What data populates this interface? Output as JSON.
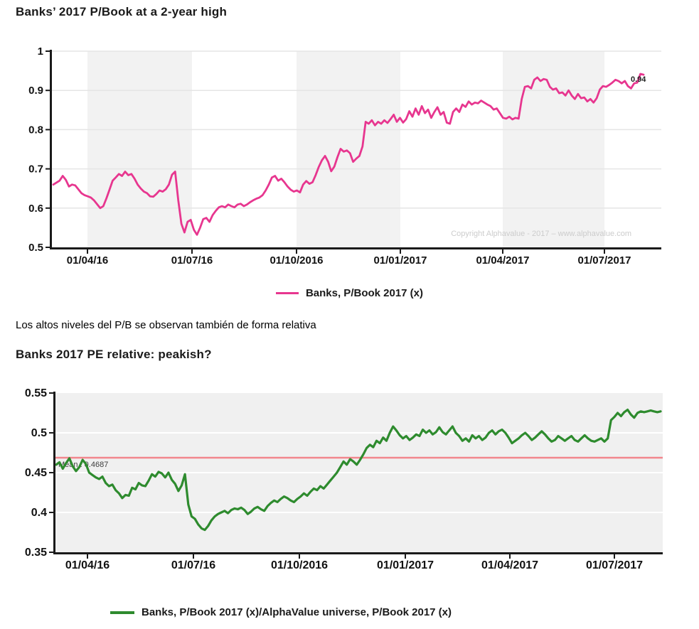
{
  "page": {
    "heading1": "Banks’ 2017 P/Book at a 2-year high",
    "paragraph": "Los altos niveles del P/B se observan también de forma relativa",
    "heading2": "Banks 2017 PE relative: peakish?"
  },
  "chart_data": [
    {
      "type": "line",
      "title": "Banks’ 2017 P/Book at a 2-year high",
      "legend": "Banks, P/Book 2017 (x)",
      "legend_position": "bottom",
      "line_color": "#e7368f",
      "ylim": [
        0.5,
        1.0
      ],
      "y_tick_values": [
        1,
        0.9,
        0.8,
        0.7,
        0.6,
        0.5
      ],
      "y_tick_labels": [
        "1",
        "0.9",
        "0.8",
        "0.7",
        "0.6",
        "0.5"
      ],
      "x_tick_labels": [
        "01/04/16",
        "01/07/16",
        "01/10/2016",
        "01/01/2017",
        "01/04/2017",
        "01/07/2017"
      ],
      "end_label": "0.94",
      "watermark": "Copyright Alphavalue - 2017 – www.alphavalue.com",
      "grid": "horizontal",
      "band_fill": "#f2f2f2",
      "values": [
        0.66,
        0.665,
        0.67,
        0.682,
        0.672,
        0.655,
        0.66,
        0.658,
        0.648,
        0.638,
        0.633,
        0.63,
        0.627,
        0.62,
        0.61,
        0.6,
        0.605,
        0.625,
        0.647,
        0.67,
        0.678,
        0.687,
        0.682,
        0.693,
        0.684,
        0.687,
        0.675,
        0.66,
        0.65,
        0.642,
        0.638,
        0.63,
        0.629,
        0.636,
        0.645,
        0.642,
        0.648,
        0.66,
        0.685,
        0.693,
        0.62,
        0.56,
        0.538,
        0.565,
        0.57,
        0.545,
        0.532,
        0.55,
        0.572,
        0.575,
        0.565,
        0.582,
        0.593,
        0.602,
        0.605,
        0.602,
        0.609,
        0.605,
        0.602,
        0.609,
        0.611,
        0.605,
        0.609,
        0.615,
        0.62,
        0.624,
        0.627,
        0.633,
        0.645,
        0.66,
        0.678,
        0.682,
        0.67,
        0.675,
        0.666,
        0.655,
        0.647,
        0.642,
        0.645,
        0.64,
        0.66,
        0.669,
        0.662,
        0.666,
        0.684,
        0.705,
        0.722,
        0.733,
        0.718,
        0.694,
        0.706,
        0.73,
        0.751,
        0.744,
        0.747,
        0.74,
        0.718,
        0.726,
        0.733,
        0.757,
        0.82,
        0.815,
        0.824,
        0.811,
        0.82,
        0.815,
        0.824,
        0.817,
        0.827,
        0.838,
        0.82,
        0.83,
        0.818,
        0.827,
        0.847,
        0.833,
        0.854,
        0.838,
        0.86,
        0.842,
        0.851,
        0.83,
        0.845,
        0.857,
        0.838,
        0.845,
        0.818,
        0.815,
        0.845,
        0.854,
        0.845,
        0.864,
        0.858,
        0.872,
        0.864,
        0.869,
        0.867,
        0.874,
        0.869,
        0.864,
        0.86,
        0.851,
        0.854,
        0.842,
        0.83,
        0.828,
        0.833,
        0.826,
        0.83,
        0.828,
        0.878,
        0.909,
        0.911,
        0.905,
        0.927,
        0.933,
        0.924,
        0.929,
        0.927,
        0.909,
        0.902,
        0.905,
        0.893,
        0.895,
        0.887,
        0.9,
        0.887,
        0.878,
        0.891,
        0.88,
        0.882,
        0.872,
        0.878,
        0.869,
        0.88,
        0.902,
        0.911,
        0.909,
        0.914,
        0.92,
        0.927,
        0.924,
        0.918,
        0.924,
        0.911,
        0.905,
        0.918,
        0.92,
        0.942,
        0.94
      ]
    },
    {
      "type": "line",
      "title": "Banks 2017 PE relative: peakish?",
      "legend": "Banks, P/Book 2017 (x)/AlphaValue universe, P/Book 2017 (x)",
      "legend_position": "bottom",
      "line_color": "#2e8b2e",
      "mean_label": "Mean : 0.4687",
      "mean_value": 0.4687,
      "mean_line_color": "#f2868d",
      "ylim": [
        0.35,
        0.55
      ],
      "y_tick_values": [
        0.55,
        0.5,
        0.45,
        0.4,
        0.35
      ],
      "y_tick_labels": [
        "0.55",
        "0.5",
        "0.45",
        "0.4",
        "0.35"
      ],
      "x_tick_labels": [
        "01/04/16",
        "01/07/16",
        "01/10/2016",
        "01/01/2017",
        "01/04/2017",
        "01/07/2017"
      ],
      "grid": "horizontal",
      "plot_background": "#f0f0f0",
      "values": [
        0.46,
        0.463,
        0.455,
        0.462,
        0.468,
        0.458,
        0.452,
        0.457,
        0.466,
        0.461,
        0.45,
        0.447,
        0.444,
        0.442,
        0.445,
        0.437,
        0.433,
        0.435,
        0.428,
        0.424,
        0.418,
        0.422,
        0.421,
        0.431,
        0.429,
        0.437,
        0.434,
        0.433,
        0.44,
        0.448,
        0.445,
        0.451,
        0.449,
        0.444,
        0.45,
        0.441,
        0.436,
        0.427,
        0.434,
        0.448,
        0.41,
        0.395,
        0.392,
        0.385,
        0.38,
        0.378,
        0.383,
        0.39,
        0.395,
        0.398,
        0.4,
        0.402,
        0.399,
        0.403,
        0.405,
        0.404,
        0.406,
        0.403,
        0.398,
        0.401,
        0.405,
        0.407,
        0.404,
        0.402,
        0.408,
        0.412,
        0.415,
        0.413,
        0.417,
        0.42,
        0.418,
        0.415,
        0.413,
        0.417,
        0.42,
        0.424,
        0.421,
        0.426,
        0.43,
        0.428,
        0.433,
        0.43,
        0.435,
        0.44,
        0.445,
        0.45,
        0.457,
        0.464,
        0.46,
        0.467,
        0.464,
        0.46,
        0.466,
        0.473,
        0.481,
        0.485,
        0.482,
        0.49,
        0.487,
        0.494,
        0.49,
        0.5,
        0.508,
        0.503,
        0.497,
        0.493,
        0.496,
        0.491,
        0.494,
        0.498,
        0.496,
        0.504,
        0.5,
        0.503,
        0.498,
        0.501,
        0.507,
        0.501,
        0.498,
        0.503,
        0.508,
        0.5,
        0.496,
        0.49,
        0.493,
        0.489,
        0.497,
        0.493,
        0.496,
        0.491,
        0.494,
        0.5,
        0.503,
        0.498,
        0.502,
        0.504,
        0.5,
        0.494,
        0.487,
        0.49,
        0.493,
        0.497,
        0.5,
        0.496,
        0.491,
        0.494,
        0.498,
        0.502,
        0.498,
        0.493,
        0.489,
        0.491,
        0.496,
        0.493,
        0.49,
        0.493,
        0.496,
        0.491,
        0.489,
        0.493,
        0.497,
        0.493,
        0.49,
        0.489,
        0.491,
        0.493,
        0.489,
        0.493,
        0.516,
        0.52,
        0.525,
        0.521,
        0.526,
        0.529,
        0.523,
        0.519,
        0.525,
        0.527,
        0.526,
        0.527,
        0.528,
        0.527,
        0.526,
        0.527
      ]
    }
  ]
}
